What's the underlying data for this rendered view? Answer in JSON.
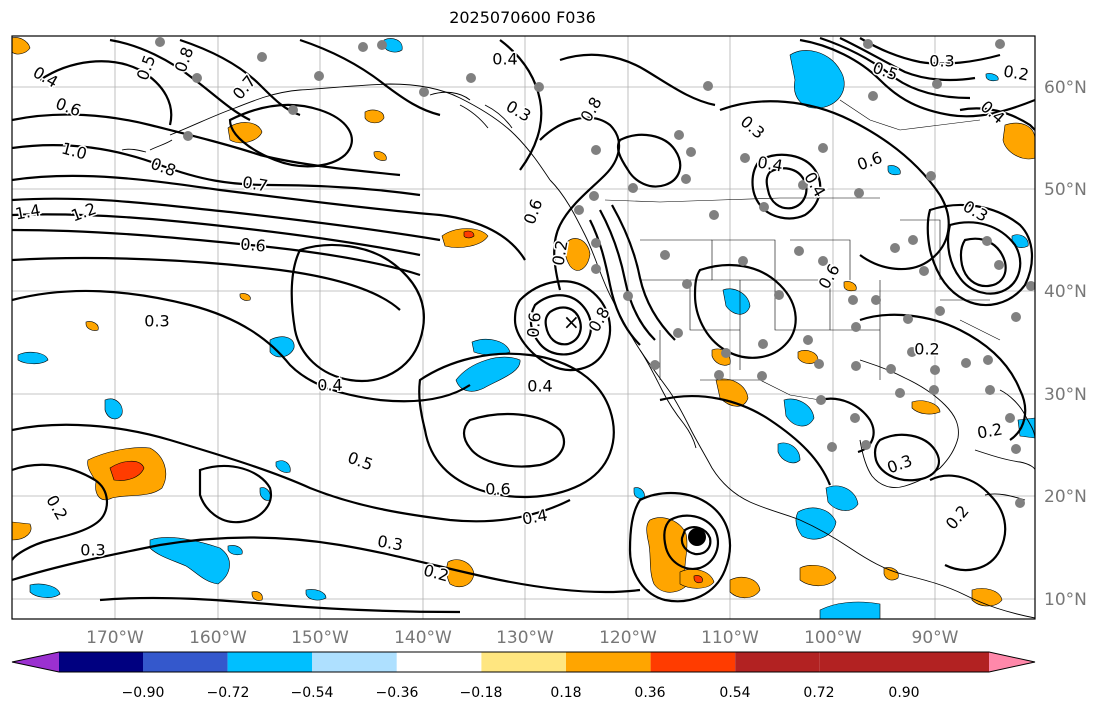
{
  "title": "2025070600 F036",
  "lat_labels": [
    "60°N",
    "50°N",
    "40°N",
    "30°N",
    "20°N",
    "10°N"
  ],
  "lon_labels": [
    "170°W",
    "160°W",
    "150°W",
    "140°W",
    "130°W",
    "120°W",
    "110°W",
    "100°W",
    "90°W"
  ],
  "colorbar": {
    "ticks": [
      "−0.90",
      "−0.72",
      "−0.54",
      "−0.36",
      "−0.18",
      "0.18",
      "0.36",
      "0.54",
      "0.72",
      "0.90"
    ],
    "colors": [
      "#9b30d0",
      "#000080",
      "#3458cc",
      "#00bfff",
      "#aee0ff",
      "#ffffff",
      "#ffe680",
      "#ffa500",
      "#ff3c00",
      "#b22222",
      "#ff88aa"
    ]
  },
  "contour_labels": [
    "0.4",
    "0.5",
    "0.8",
    "0.7",
    "0.6",
    "1.0",
    "0.8",
    "0.7",
    "1.4",
    "1.2",
    "0.6",
    "0.3",
    "0.4",
    "0.5",
    "0.6",
    "0.4",
    "0.3",
    "0.2",
    "0.2",
    "0.3",
    "0.4",
    "0.8",
    "0.4",
    "0.3",
    "0.6",
    "0.2",
    "0.6",
    "0.8",
    "0.3",
    "0.4",
    "0.6",
    "0.4",
    "0.6",
    "0.5",
    "0.3",
    "0.2",
    "0.4",
    "0.3",
    "0.2",
    "0.2",
    "0.3",
    "0.2"
  ]
}
